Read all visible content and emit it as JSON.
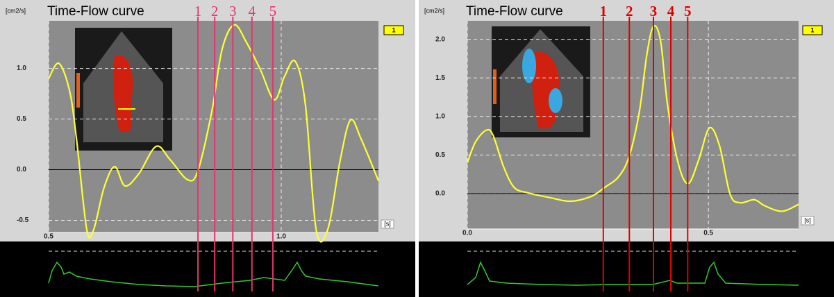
{
  "chart_data": [
    {
      "type": "line",
      "title": "Time-Flow curve",
      "y_label": "[cm2/s]",
      "x_label": "[s]",
      "badge": "1",
      "x": [
        0.5,
        0.522,
        0.545,
        0.56,
        0.582,
        0.597,
        0.619,
        0.642,
        0.664,
        0.694,
        0.731,
        0.761,
        0.799,
        0.821,
        0.851,
        0.873,
        0.899,
        0.925,
        0.955,
        0.985,
        1.007,
        1.03,
        1.052,
        1.075,
        1.1,
        1.127,
        1.149,
        1.172,
        1.209
      ],
      "values": [
        0.9,
        1.05,
        0.78,
        0.3,
        -0.59,
        -0.59,
        -0.18,
        0.03,
        -0.16,
        -0.04,
        0.23,
        0.1,
        -0.1,
        -0.01,
        0.58,
        1.19,
        1.43,
        1.26,
        0.99,
        0.69,
        0.92,
        1.07,
        0.64,
        -0.59,
        -0.59,
        0.1,
        0.49,
        0.3,
        -0.11
      ],
      "color": "#ffff33",
      "xlim": [
        0.5,
        1.209
      ],
      "xticks": [
        0.5,
        {
          "value": 1,
          "label": "1.0"
        }
      ],
      "ylim": [
        -0.62,
        1.47
      ],
      "yticks": [
        {
          "value": 1,
          "label": "1.0"
        },
        0.5,
        {
          "value": 0,
          "label": "0.0"
        },
        -0.5
      ],
      "grid": true,
      "zero_line": true,
      "markers": [
        {
          "label": "1",
          "x": 0.821
        },
        {
          "label": "2",
          "x": 0.857
        },
        {
          "label": "3",
          "x": 0.896
        },
        {
          "label": "4",
          "x": 0.937
        },
        {
          "label": "5",
          "x": 0.982
        }
      ],
      "marker_color": "#e8336b"
    },
    {
      "type": "line",
      "title": "Time-Flow curve",
      "y_label": "[cm2/s]",
      "x_label": "[s]",
      "badge": "1",
      "x": [
        0,
        0.017,
        0.039,
        0.053,
        0.075,
        0.097,
        0.125,
        0.169,
        0.213,
        0.256,
        0.285,
        0.314,
        0.336,
        0.357,
        0.372,
        0.386,
        0.401,
        0.415,
        0.437,
        0.458,
        0.48,
        0.502,
        0.523,
        0.545,
        0.566,
        0.595,
        0.617,
        0.653,
        0.687
      ],
      "values": [
        0.4,
        0.67,
        0.82,
        0.76,
        0.35,
        0.08,
        0.01,
        -0.05,
        -0.1,
        -0.04,
        0.08,
        0.22,
        0.49,
        1.07,
        1.79,
        2.17,
        1.97,
        1.16,
        0.4,
        0.13,
        0.44,
        0.85,
        0.62,
        -0.01,
        -0.12,
        -0.08,
        -0.16,
        -0.23,
        -0.14
      ],
      "color": "#ffff33",
      "xlim": [
        0,
        0.687
      ],
      "xticks": [
        {
          "value": 0,
          "label": "0.0"
        },
        0.5
      ],
      "ylim": [
        -0.46,
        2.24
      ],
      "yticks": [
        {
          "value": 2,
          "label": "2.0"
        },
        1.5,
        {
          "value": 1,
          "label": "1.0"
        },
        0.5,
        {
          "value": 0,
          "label": "0.0"
        }
      ],
      "grid": true,
      "zero_line": true,
      "markers": [
        {
          "label": "1",
          "x": 0.282
        },
        {
          "label": "2",
          "x": 0.336
        },
        {
          "label": "3",
          "x": 0.386
        },
        {
          "label": "4",
          "x": 0.422
        },
        {
          "label": "5",
          "x": 0.457
        }
      ],
      "marker_color": "#e00000"
    }
  ]
}
